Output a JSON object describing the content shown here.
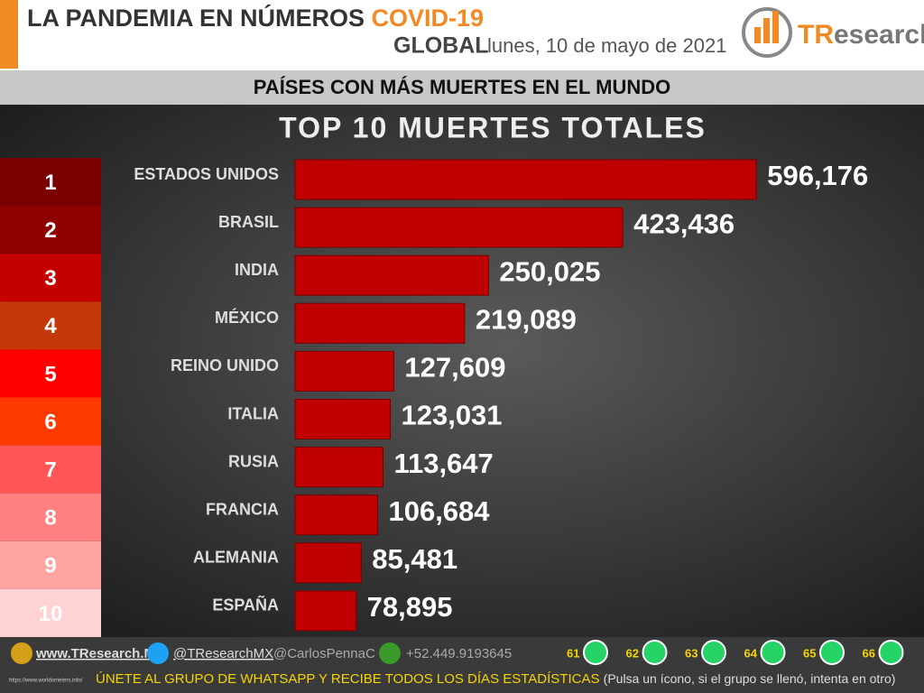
{
  "header": {
    "title": "LA PANDEMIA EN NÚMEROS",
    "title_accent": "COVID-19",
    "scope": "GLOBAL",
    "date": "lunes, 10 de mayo de 2021",
    "logo_accent": "TR",
    "logo_rest": "esearch"
  },
  "banner": "PAÍSES CON MÁS MUERTES EN EL MUNDO",
  "chart_data": {
    "type": "hbar",
    "title": "TOP 10 MUERTES TOTALES",
    "ranks": [
      1,
      2,
      3,
      4,
      5,
      6,
      7,
      8,
      9,
      10
    ],
    "rank_colors": [
      "#7a0000",
      "#8e0000",
      "#c40000",
      "#c4380a",
      "#ff0000",
      "#ff3a00",
      "#ff5555",
      "#ff8080",
      "#ffa3a3",
      "#ffd3d3"
    ],
    "categories": [
      "ESTADOS UNIDOS",
      "BRASIL",
      "INDIA",
      "MÉXICO",
      "REINO UNIDO",
      "ITALIA",
      "RUSIA",
      "FRANCIA",
      "ALEMANIA",
      "ESPAÑA"
    ],
    "values": [
      596176,
      423436,
      250025,
      219089,
      127609,
      123031,
      113647,
      106684,
      85481,
      78895
    ],
    "value_labels": [
      "596,176",
      "423,436",
      "250,025",
      "219,089",
      "127,609",
      "123,031",
      "113,647",
      "106,684",
      "85,481",
      "78,895"
    ],
    "color": "#c00000",
    "xlim": [
      0,
      800000
    ]
  },
  "footer": {
    "site": "www.TResearch.Mx",
    "twitter": "@TResearchMX",
    "author": "@CarlosPennaC",
    "phone": "+52.449.9193645",
    "groups": [
      "61",
      "62",
      "63",
      "64",
      "65",
      "66"
    ],
    "call": "ÚNETE AL GRUPO DE WHATSAPP Y RECIBE TODOS LOS DÍAS ESTADÍSTICAS",
    "hint": "(Pulsa un ícono, si el grupo se llenó, intenta en otro)",
    "source": "https://www.worldometers.info/"
  }
}
